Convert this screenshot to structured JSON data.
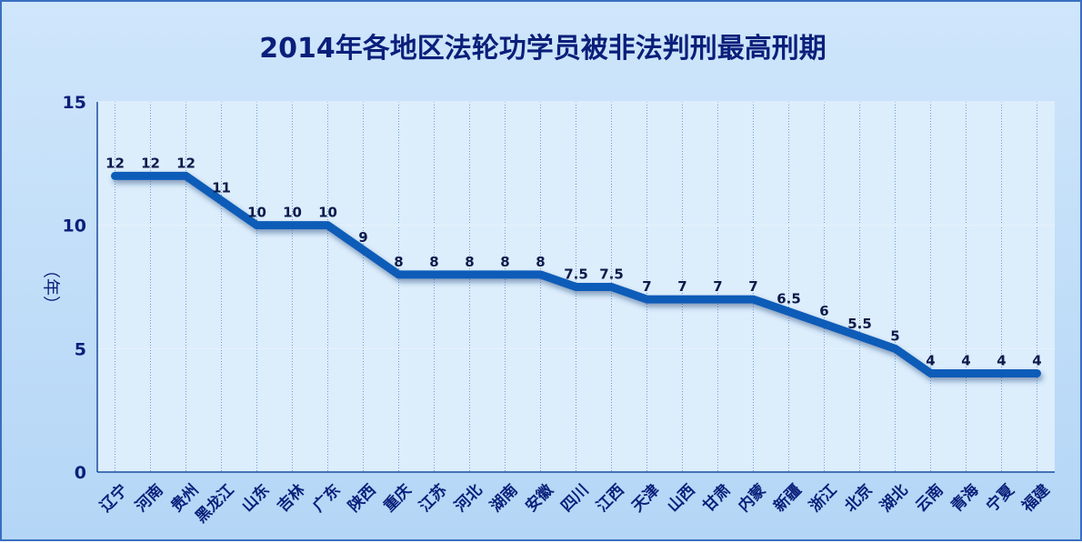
{
  "chart_data": {
    "type": "line",
    "title": "2014年各地区法轮功学员被非法判刑最高刑期",
    "xlabel": "",
    "ylabel": "（年）",
    "ylim": [
      0,
      15
    ],
    "yticks": [
      0,
      5,
      10,
      15
    ],
    "grid": true,
    "categories": [
      "辽宁",
      "河南",
      "贵州",
      "黑龙江",
      "山东",
      "吉林",
      "广东",
      "陕西",
      "重庆",
      "江苏",
      "河北",
      "湖南",
      "安徽",
      "四川",
      "江西",
      "天津",
      "山西",
      "甘肃",
      "内蒙",
      "新疆",
      "浙江",
      "北京",
      "湖北",
      "云南",
      "青海",
      "宁夏",
      "福建"
    ],
    "series": [
      {
        "values": [
          12,
          12,
          12,
          11,
          10,
          10,
          10,
          9,
          8,
          8,
          8,
          8,
          8,
          7.5,
          7.5,
          7,
          7,
          7,
          7,
          6.5,
          6,
          5.5,
          5,
          4,
          4,
          4,
          4
        ]
      }
    ],
    "data_labels": [
      "12",
      "12",
      "12",
      "11",
      "10",
      "10",
      "10",
      "9",
      "8",
      "8",
      "8",
      "8",
      "8",
      "7.5",
      "7.5",
      "7",
      "7",
      "7",
      "7",
      "6.5",
      "6",
      "5.5",
      "5",
      "4",
      "4",
      "4",
      "4"
    ],
    "colors": {
      "line": "#0d5bb8",
      "background": "#b9d8f5",
      "plot_area": "#dcedfc",
      "axis": "#1a4d9e",
      "text": "#0a1f7a"
    }
  }
}
